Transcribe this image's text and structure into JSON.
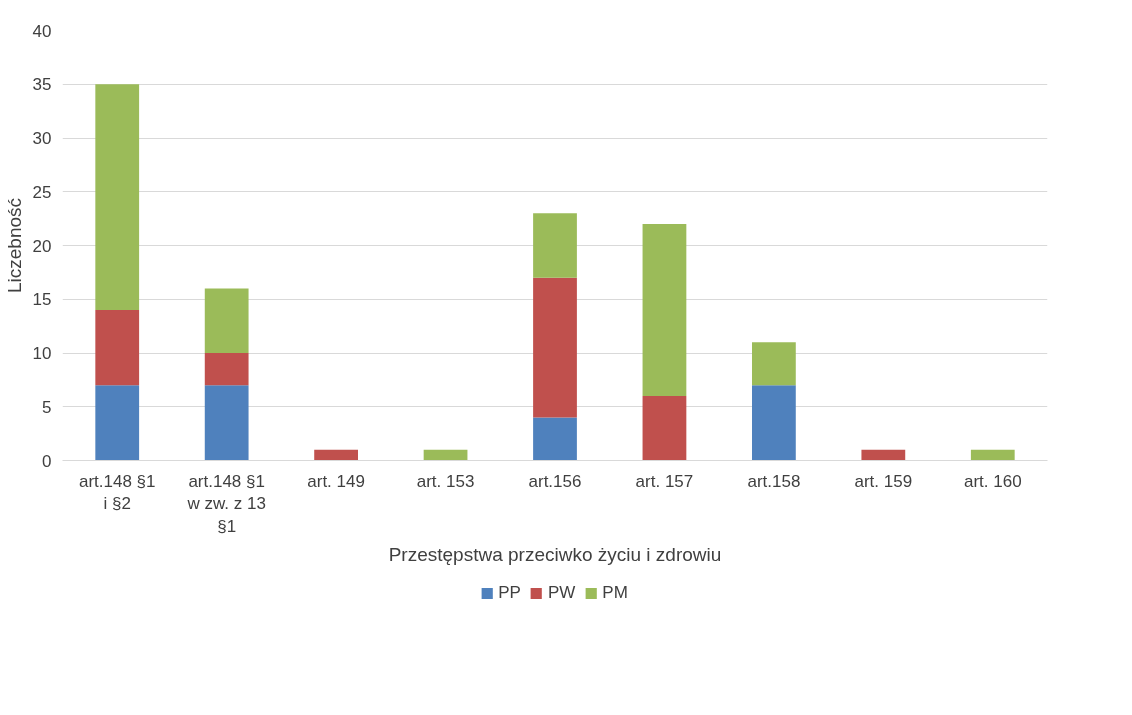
{
  "chart_data": {
    "type": "bar",
    "stacked": true,
    "categories": [
      "art.148 §1 i §2",
      "art.148 §1 w zw. z 13 §1",
      "art. 149",
      "art. 153",
      "art.156",
      "art. 157",
      "art.158",
      "art. 159",
      "art. 160"
    ],
    "series": [
      {
        "name": "PP",
        "color": "#4f81bd",
        "values": [
          7,
          7,
          0,
          0,
          4,
          0,
          7,
          0,
          0
        ]
      },
      {
        "name": "PW",
        "color": "#c0504d",
        "values": [
          7,
          3,
          1,
          0,
          13,
          6,
          0,
          1,
          0
        ]
      },
      {
        "name": "PM",
        "color": "#9bbb59",
        "values": [
          21,
          6,
          0,
          1,
          6,
          16,
          4,
          0,
          1
        ]
      }
    ],
    "xlabel": "Przestępstwa przeciwko życiu i zdrowiu",
    "ylabel": "Liczebność",
    "ylim": [
      0,
      40
    ],
    "yticks": [
      0,
      5,
      10,
      15,
      20,
      25,
      30,
      35,
      40
    ],
    "grid": "y",
    "legend": "bottom"
  }
}
